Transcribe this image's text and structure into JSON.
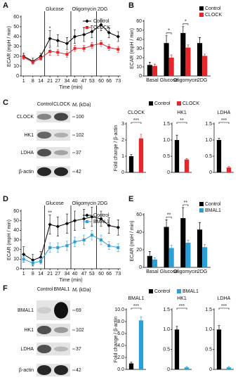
{
  "chart_data": [
    {
      "type": "line",
      "panel": "A",
      "ylabel": "ECAR (mpH / min)",
      "xlabel": "Time (min)",
      "x": [
        1,
        8,
        14,
        21,
        27,
        34,
        40,
        47,
        53,
        60,
        66,
        73
      ],
      "xlim": [
        -1,
        75
      ],
      "xticks": [
        1,
        8,
        14,
        21,
        27,
        34,
        40,
        47,
        53,
        60,
        66,
        73
      ],
      "ylim": [
        0,
        60
      ],
      "yticks": [
        0,
        10,
        20,
        30,
        40,
        50,
        60
      ],
      "events": [
        {
          "label": "Glucose",
          "x": 17
        },
        {
          "label": "Oligomycin",
          "x": 37
        },
        {
          "label": "2DG",
          "x": 56.5
        }
      ],
      "significance": [
        {
          "label": "*",
          "x": 21
        }
      ],
      "series": [
        {
          "name": "Control",
          "color": "#000000",
          "marker": "diamond",
          "values": [
            20,
            15,
            20,
            38,
            36,
            33,
            40,
            42,
            45,
            52,
            44,
            40
          ],
          "errors": [
            3,
            3,
            3,
            8,
            6,
            6,
            7,
            7,
            6,
            6,
            5,
            5
          ]
        },
        {
          "name": "CLOCK",
          "color": "#e8262a",
          "marker": "square",
          "values": [
            19,
            14,
            18,
            25,
            24,
            22,
            28,
            28,
            31,
            33,
            29,
            27
          ],
          "errors": [
            2,
            2,
            2,
            4,
            3,
            3,
            3,
            3,
            3,
            3,
            3,
            3
          ]
        }
      ]
    },
    {
      "type": "bar",
      "panel": "B",
      "ylabel": "ECAR (mpH / min)",
      "categories": [
        "Basal",
        "Glucose",
        "Oligomycin",
        "2DG"
      ],
      "ylim": [
        0,
        60
      ],
      "yticks": [
        0,
        10,
        20,
        30,
        40,
        50,
        60
      ],
      "significance": [
        {
          "label": "*",
          "category": "Glucose"
        },
        {
          "label": "*",
          "category": "Oligomycin"
        }
      ],
      "series": [
        {
          "name": "Control",
          "color": "#000000",
          "values": [
            12,
            36,
            47,
            36
          ],
          "errors": [
            3,
            8,
            7,
            6
          ]
        },
        {
          "name": "CLOCK",
          "color": "#e8262a",
          "values": [
            11,
            20,
            31,
            22
          ],
          "errors": [
            2,
            3,
            3,
            2
          ]
        }
      ]
    },
    {
      "type": "minibar",
      "title": "CLOCK",
      "ylabel": "Fold change / β-actin",
      "legend": [
        {
          "name": "Control",
          "color": "#000000"
        },
        {
          "name": "CLOCK",
          "color": "#e8262a"
        }
      ],
      "colors": [
        "#000000",
        "#e8262a"
      ],
      "values": [
        1.0,
        2.1
      ],
      "errors": [
        0.1,
        0.25
      ],
      "ylim": [
        0,
        3
      ],
      "yticks": [
        0,
        1,
        2,
        3
      ],
      "significance": "***"
    },
    {
      "type": "minibar",
      "title": "HK1",
      "colors": [
        "#000000",
        "#e8262a"
      ],
      "values": [
        1.0,
        0.4
      ],
      "errors": [
        0.15,
        0.03
      ],
      "ylim": [
        0,
        1.5
      ],
      "yticks": [
        0,
        0.5,
        {
          "value": 1,
          "label": "1.0"
        },
        1.5
      ],
      "significance": "**"
    },
    {
      "type": "minibar",
      "title": "LDHA",
      "colors": [
        "#000000",
        "#e8262a"
      ],
      "values": [
        1.0,
        0.15
      ],
      "errors": [
        0.05,
        0.03
      ],
      "ylim": [
        0,
        1.5
      ],
      "yticks": [
        0,
        0.5,
        {
          "value": 1,
          "label": "1.0"
        },
        1.5
      ],
      "significance": "***"
    },
    {
      "type": "line",
      "panel": "D",
      "ylabel": "ECAR (mpH / min)",
      "xlabel": "Time (min)",
      "x": [
        1,
        8,
        14,
        21,
        27,
        34,
        40,
        47,
        53,
        60,
        66,
        73
      ],
      "xlim": [
        -1,
        75
      ],
      "xticks": [
        1,
        8,
        14,
        21,
        27,
        34,
        40,
        47,
        53,
        60,
        66,
        73
      ],
      "ylim": [
        0,
        60
      ],
      "yticks": [
        0,
        10,
        20,
        30,
        40,
        50,
        60
      ],
      "events": [
        {
          "label": "Glucose",
          "x": 17
        },
        {
          "label": "Oligomycin",
          "x": 37
        },
        {
          "label": "2DG",
          "x": 56.5
        }
      ],
      "significance": [
        {
          "label": "**",
          "x": 21
        }
      ],
      "series": [
        {
          "name": "Control",
          "color": "#000000",
          "marker": "diamond",
          "values": [
            15,
            9,
            12,
            46,
            44,
            47,
            50,
            52,
            54,
            52,
            45,
            43
          ],
          "errors": [
            8,
            6,
            6,
            10,
            10,
            10,
            10,
            10,
            10,
            8,
            8,
            8
          ]
        },
        {
          "name": "BMAL1",
          "color": "#2a9fd8",
          "marker": "square",
          "values": [
            10,
            6,
            8,
            22,
            22,
            24,
            28,
            30,
            35,
            30,
            24,
            22
          ],
          "errors": [
            3,
            2,
            3,
            5,
            5,
            5,
            5,
            5,
            5,
            5,
            4,
            4
          ]
        }
      ]
    },
    {
      "type": "bar",
      "panel": "E",
      "ylabel": "ECAR (mpH / min)",
      "categories": [
        "Basal",
        "Glucose",
        "Oligomycin",
        "2DG"
      ],
      "ylim": [
        0,
        60
      ],
      "yticks": [
        0,
        20,
        40,
        60
      ],
      "significance": [
        {
          "label": "**",
          "category": "Glucose"
        },
        {
          "label": "**",
          "category": "Oligomycin"
        }
      ],
      "series": [
        {
          "name": "Control",
          "color": "#000000",
          "values": [
            13,
            46,
            56,
            43
          ],
          "errors": [
            5,
            8,
            12,
            8
          ]
        },
        {
          "name": "BMAL1",
          "color": "#2a9fd8",
          "values": [
            9,
            22,
            28,
            23
          ],
          "errors": [
            2,
            3,
            3,
            3
          ]
        }
      ]
    },
    {
      "type": "minibar",
      "title": "BMAL1",
      "ylabel": "Fold change / β-actin",
      "legend": [
        {
          "name": "Control",
          "color": "#000000"
        },
        {
          "name": "BMAL1",
          "color": "#2a9fd8"
        }
      ],
      "colors": [
        "#000000",
        "#2a9fd8"
      ],
      "values": [
        1.0,
        8.2
      ],
      "errors": [
        0.2,
        0.6
      ],
      "ylim": [
        0,
        10
      ],
      "yticks": [
        {
          "value": 0,
          "label": "0.0"
        },
        {
          "value": 2,
          "label": "2.0"
        },
        {
          "value": 4,
          "label": "4.0"
        },
        {
          "value": 6,
          "label": "6.0"
        },
        {
          "value": 8,
          "label": "8.0"
        },
        {
          "value": 10,
          "label": "10.0"
        }
      ],
      "significance": "***"
    },
    {
      "type": "minibar",
      "title": "HK1",
      "colors": [
        "#000000",
        "#2a9fd8"
      ],
      "values": [
        1.0,
        0.05
      ],
      "errors": [
        0.08,
        0.02
      ],
      "ylim": [
        0,
        1.5
      ],
      "yticks": [
        0,
        0.5,
        {
          "value": 1,
          "label": "1.0"
        },
        1.5
      ],
      "significance": "***"
    },
    {
      "type": "minibar",
      "title": "LDHA",
      "colors": [
        "#000000",
        "#2a9fd8"
      ],
      "values": [
        1.0,
        0.05
      ],
      "errors": [
        0.1,
        0.02
      ],
      "ylim": [
        0,
        1.5
      ],
      "yticks": [
        0,
        0.5,
        {
          "value": 1,
          "label": "1.0"
        },
        1.5
      ],
      "significance": "***"
    }
  ],
  "blots": [
    {
      "panel": "C",
      "columns": [
        "Control",
        "CLOCK"
      ],
      "unit_symbol": "M",
      "unit_subscript": "r",
      "unit": " (kDa)",
      "rows": [
        {
          "label": "CLOCK",
          "mw": "100"
        },
        {
          "label": "HK1",
          "mw": "102"
        },
        {
          "label": "LDHA",
          "mw": "37"
        },
        {
          "label": "β-actin",
          "mw": "42"
        }
      ]
    },
    {
      "panel": "F",
      "columns": [
        "Control",
        "BMAL1"
      ],
      "unit_symbol": "M",
      "unit_subscript": "r",
      "unit": " (kDa)",
      "rows": [
        {
          "label": "BMAL1",
          "mw": "69"
        },
        {
          "label": "HK1",
          "mw": "102"
        },
        {
          "label": "LDHA",
          "mw": "37"
        },
        {
          "label": "β-actin",
          "mw": "42"
        }
      ]
    }
  ]
}
